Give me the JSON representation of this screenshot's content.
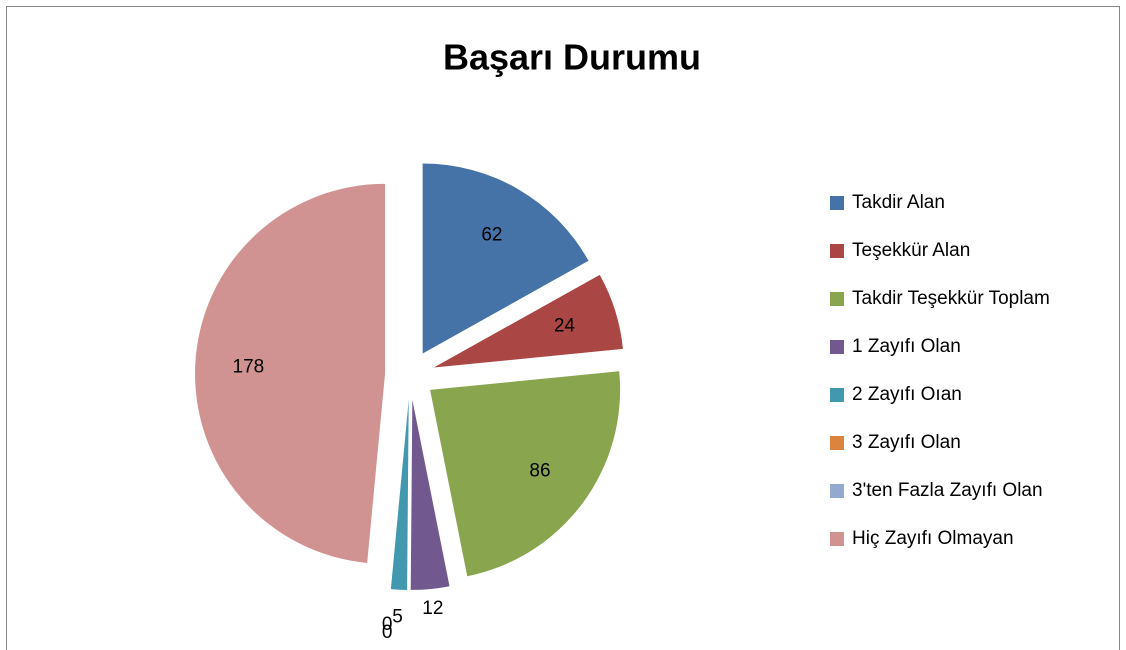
{
  "chart_data": {
    "type": "pie",
    "title": "Başarı Durumu",
    "categories": [
      "Takdir Alan",
      "Teşekkür Alan",
      "Takdir Teşekkür Toplam",
      "1 Zayıfı Olan",
      "2 Zayıfı Oıan",
      "3 Zayıfı Olan",
      "3'ten Fazla Zayıfı Olan",
      "Hiç Zayıfı Olmayan"
    ],
    "values": [
      62,
      24,
      86,
      12,
      5,
      0,
      0,
      178
    ],
    "colors": [
      "#4572a7",
      "#aa4643",
      "#89a54e",
      "#71588f",
      "#4198af",
      "#db843d",
      "#93a9cf",
      "#d19392"
    ],
    "legend": "right"
  }
}
